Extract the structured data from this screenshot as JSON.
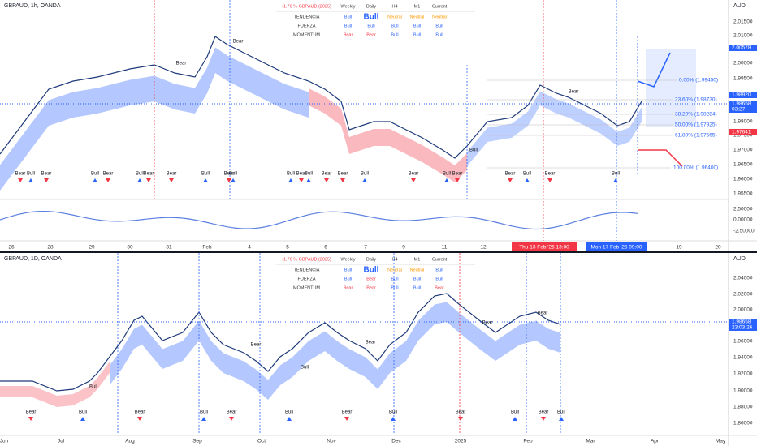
{
  "panels": [
    {
      "title": "GBPAUD, 1h, OANDA",
      "currency": "AUD",
      "table": {
        "header": [
          "-1.76 % GBPAUD (2025)",
          "Weekly",
          "Daily",
          "H4",
          "M1",
          "Current"
        ],
        "rows": [
          [
            "TENDENCIA",
            "Bull",
            "Bull",
            "Neutral",
            "Neutral",
            "Neutral"
          ],
          [
            "FUERZA",
            "Bull",
            "Bull",
            "Bull",
            "Bull",
            "Bull"
          ],
          [
            "MOMENTUM",
            "Bear",
            "Bear",
            "Bull",
            "Bull",
            "Bull"
          ]
        ]
      },
      "price_labels": [
        "2.01500",
        "2.01000",
        "2.00000",
        "1.99500",
        "1.98000",
        "1.97500",
        "1.97000",
        "1.96500",
        "1.96000",
        "1.95500"
      ],
      "badges": [
        "2.00578",
        "1.98920",
        "1.98658",
        "03:27",
        "1.97641"
      ],
      "osc_labels": [
        "2.50000",
        "0.00000",
        "-2.50000"
      ],
      "dates": [
        "26",
        "28",
        "29",
        "30",
        "31",
        "Feb",
        "4",
        "5",
        "6",
        "7",
        "9",
        "11",
        "12",
        "19",
        "20"
      ],
      "date_markers": [
        "Thu 13 Feb '25  13:00",
        "Mon 17 Feb '25  09:00"
      ],
      "fib": [
        "0.00% (1.99450)",
        "23.60% (1.98730)",
        "38.20% (1.98284)",
        "50.00% (1.97925)",
        "61.80% (1.97565)",
        "100.00% (1.96400)"
      ],
      "signals": [
        "Bear",
        "Bull",
        "Bear",
        "Bull",
        "Bear",
        "Bull",
        "Bear",
        "Bear",
        "Bull",
        "Bear",
        "Bull",
        "Bull",
        "Bear",
        "Bull",
        "Bear",
        "Bear",
        "Bull",
        "Bear",
        "Bull",
        "Bear",
        "Bear",
        "Bull",
        "Bear",
        "Bull"
      ],
      "chart_tags": [
        "Bear",
        "Bear",
        "Bear",
        "Bull"
      ]
    },
    {
      "title": "GBPAUD, 1D, OANDA",
      "currency": "AUD",
      "table": {
        "header": [
          "-1.76 % GBPAUD (2025)",
          "Weekly",
          "Daily",
          "H4",
          "M1",
          "Current"
        ],
        "rows": [
          [
            "TENDENCIA",
            "Bull",
            "Bull",
            "Neutral",
            "Neutral",
            "Bull"
          ],
          [
            "FUERZA",
            "Bull",
            "Bear",
            "Bull",
            "Bull",
            "Bull"
          ],
          [
            "MOMENTUM",
            "Bear",
            "Bear",
            "Bull",
            "Bull",
            "Bear"
          ]
        ]
      },
      "price_labels": [
        "2.04000",
        "2.02000",
        "2.00000",
        "1.96000",
        "1.94000",
        "1.92000",
        "1.90000",
        "1.88000",
        "1.86000"
      ],
      "badges": [
        "1.98658",
        "23:03:26"
      ],
      "dates": [
        "Jun",
        "Jul",
        "Aug",
        "Sep",
        "Oct",
        "Nov",
        "Dec",
        "2025",
        "Feb",
        "Mar",
        "Apr",
        "May"
      ],
      "signals": [
        "Bear",
        "Bull",
        "Bear",
        "Bull",
        "Bear",
        "Bull",
        "Bear",
        "Bull",
        "Bear",
        "Bull",
        "Bear",
        "Bull"
      ],
      "chart_tags": [
        "Bull",
        "Bear",
        "Bull",
        "Bear",
        "Bear",
        "Bear"
      ]
    }
  ]
}
